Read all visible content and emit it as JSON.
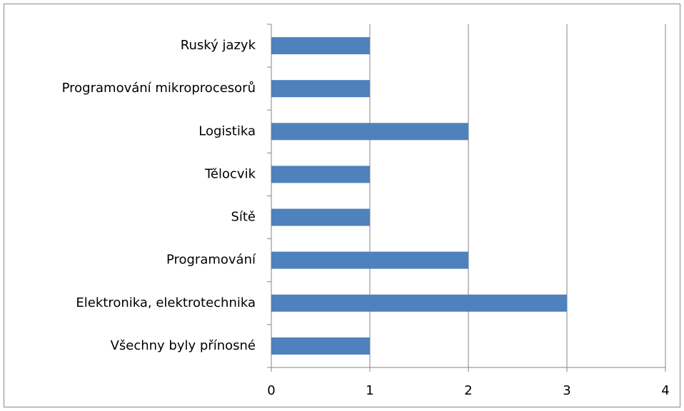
{
  "chart_data": {
    "type": "hbar",
    "categories": [
      "Všechny byly přínosné",
      "Elektronika, elektrotechnika",
      "Programování",
      "Sítě",
      "Tělocvik",
      "Logistika",
      "Programování mikroprocesorů",
      "Ruský jazyk"
    ],
    "values": [
      1,
      3,
      2,
      1,
      1,
      2,
      1,
      1
    ],
    "color": "#4f81bd",
    "xlim": [
      0,
      4
    ],
    "xticks": [
      0,
      1,
      2,
      3,
      4
    ],
    "grid": true
  }
}
